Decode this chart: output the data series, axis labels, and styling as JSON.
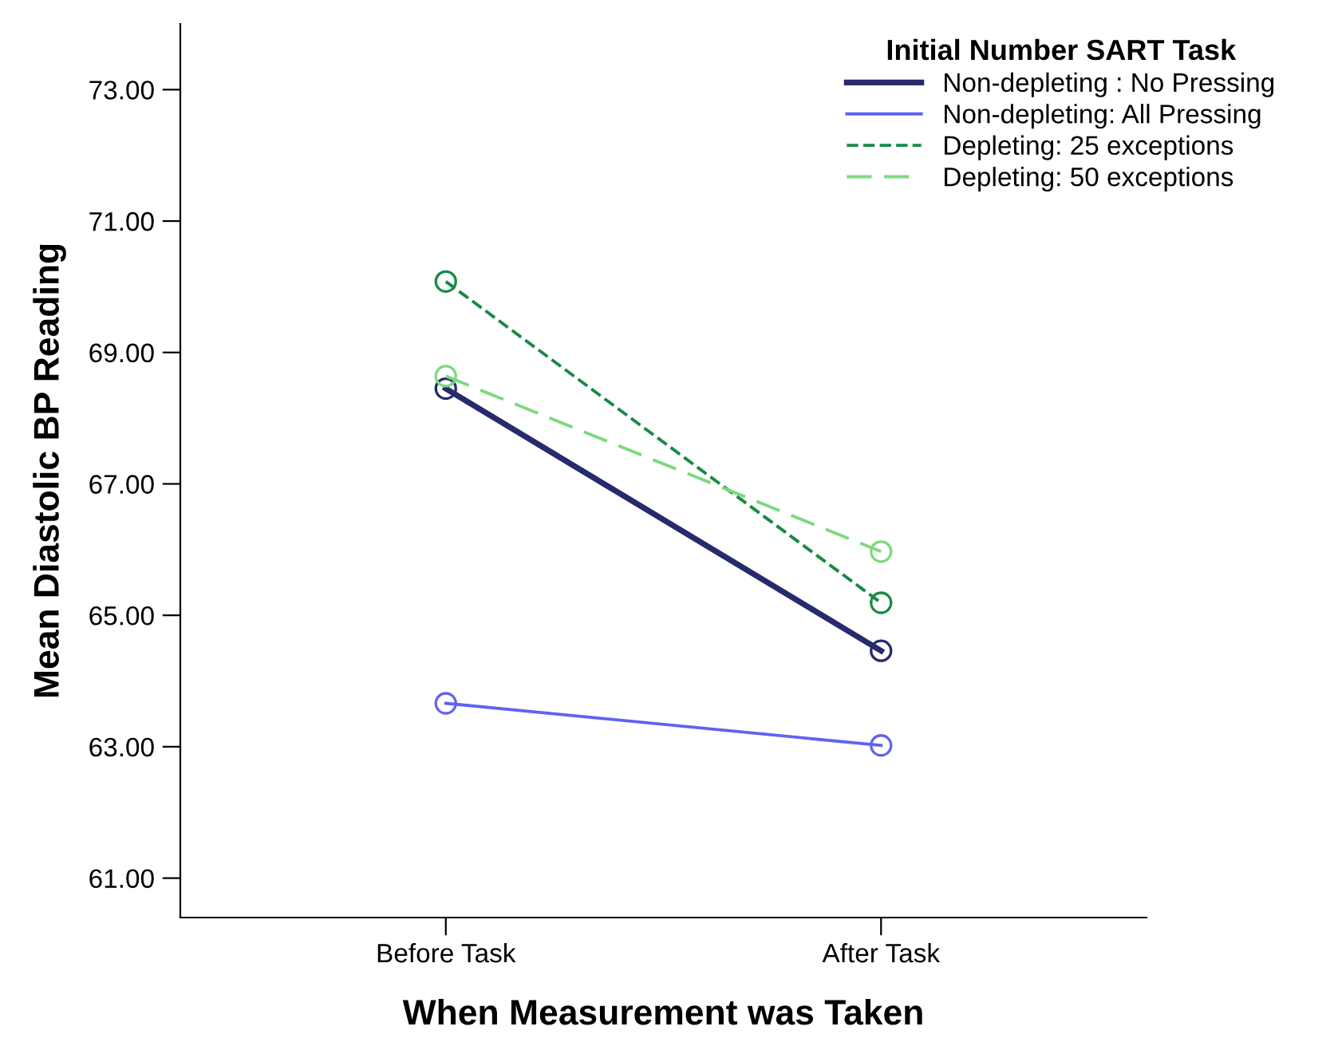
{
  "chart_data": {
    "type": "line",
    "xlabel": "When Measurement was Taken",
    "ylabel": "Mean Diastolic BP Reading",
    "legend_title": "Initial Number SART Task",
    "categories": [
      "Before Task",
      "After Task"
    ],
    "series": [
      {
        "name": "Non-depleting : No Pressing",
        "color": "#262b6b",
        "values": [
          68.45,
          64.46
        ],
        "line_style": "solid"
      },
      {
        "name": "Non-depleting: All Pressing",
        "color": "#5f63f2",
        "values": [
          63.66,
          63.02
        ],
        "line_style": "solid"
      },
      {
        "name": "Depleting: 25 exceptions",
        "color": "#188a46",
        "values": [
          70.08,
          65.19
        ],
        "line_style": "dashed"
      },
      {
        "name": "Depleting: 50 exceptions",
        "color": "#7dd97f",
        "values": [
          68.64,
          65.97
        ],
        "line_style": "dashed"
      }
    ],
    "ylim": [
      60.4,
      74.0
    ],
    "yticks": [
      {
        "value": 61,
        "label": "61.00"
      },
      {
        "value": 63,
        "label": "63.00"
      },
      {
        "value": 65,
        "label": "65.00"
      },
      {
        "value": 67,
        "label": "67.00"
      },
      {
        "value": 69,
        "label": "69.00"
      },
      {
        "value": 71,
        "label": "71.00"
      },
      {
        "value": 73,
        "label": "73.00"
      }
    ],
    "marker": "circle",
    "legend": "top right",
    "grid": false
  }
}
